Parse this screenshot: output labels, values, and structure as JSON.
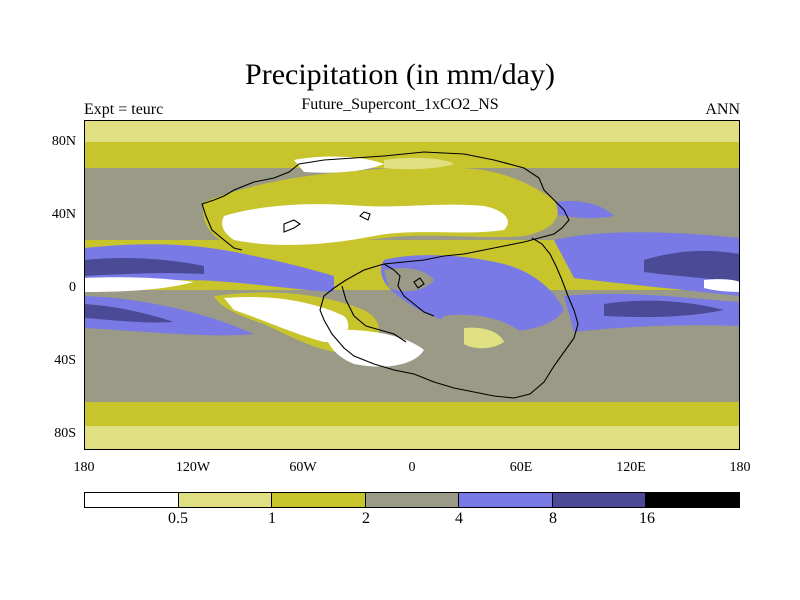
{
  "header": {
    "title": "Precipitation (in mm/day)",
    "subtitle": "Future_Supercont_1xCO2_NS",
    "left_label": "Expt = teurc",
    "right_label": "ANN"
  },
  "axes": {
    "lat_labels": [
      "80N",
      "40N",
      "0",
      "40S",
      "80S"
    ],
    "lon_labels": [
      "180",
      "120W",
      "60W",
      "0",
      "60E",
      "120E",
      "180"
    ]
  },
  "legend": {
    "colors": [
      "#ffffff",
      "#e0e082",
      "#c8c42c",
      "#9a9a86",
      "#7a7ae6",
      "#4a4a96",
      "#000000"
    ],
    "labels": [
      "0.5",
      "1",
      "2",
      "4",
      "8",
      "16"
    ]
  }
}
